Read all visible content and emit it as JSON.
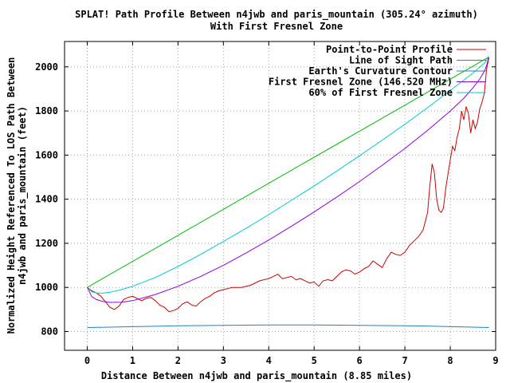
{
  "chart_data": {
    "type": "line",
    "title": "SPLAT! Path Profile Between n4jwb and paris_mountain (305.24° azimuth)",
    "subtitle": "With First Fresnel Zone",
    "xlabel": "Distance Between n4jwb and paris_mountain (8.85 miles)",
    "ylabel": "Normalized Height Referenced To LOS Path Between",
    "ylabel2": "n4jwb and paris_mountain (feet)",
    "xlim": [
      -0.5,
      9
    ],
    "ylim": [
      715,
      2115
    ],
    "xticks": [
      0,
      1,
      2,
      3,
      4,
      5,
      6,
      7,
      8,
      9
    ],
    "yticks": [
      800,
      1000,
      1200,
      1400,
      1600,
      1800,
      2000
    ],
    "grid": true,
    "legend_position": "top-right",
    "series": [
      {
        "name": "Point-to-Point Profile",
        "color": "#cc0000",
        "x": [
          0,
          0.1,
          0.2,
          0.3,
          0.4,
          0.5,
          0.6,
          0.7,
          0.8,
          0.9,
          1.0,
          1.1,
          1.2,
          1.3,
          1.4,
          1.5,
          1.6,
          1.7,
          1.8,
          1.9,
          2.0,
          2.1,
          2.2,
          2.3,
          2.4,
          2.5,
          2.6,
          2.7,
          2.8,
          2.9,
          3.0,
          3.2,
          3.4,
          3.6,
          3.8,
          4.0,
          4.1,
          4.2,
          4.3,
          4.4,
          4.5,
          4.6,
          4.7,
          4.8,
          4.9,
          5.0,
          5.1,
          5.2,
          5.3,
          5.4,
          5.5,
          5.6,
          5.7,
          5.8,
          5.9,
          6.0,
          6.1,
          6.2,
          6.3,
          6.4,
          6.5,
          6.6,
          6.7,
          6.8,
          6.9,
          7.0,
          7.1,
          7.2,
          7.3,
          7.4,
          7.5,
          7.55,
          7.6,
          7.65,
          7.7,
          7.75,
          7.8,
          7.85,
          7.9,
          8.0,
          8.05,
          8.1,
          8.15,
          8.2,
          8.25,
          8.3,
          8.35,
          8.4,
          8.45,
          8.5,
          8.55,
          8.6,
          8.65,
          8.7,
          8.75,
          8.8,
          8.85
        ],
        "values": [
          1000,
          985,
          975,
          960,
          935,
          910,
          900,
          915,
          945,
          955,
          960,
          950,
          940,
          950,
          955,
          940,
          920,
          910,
          890,
          895,
          905,
          925,
          935,
          920,
          915,
          935,
          950,
          960,
          975,
          985,
          990,
          1000,
          1000,
          1010,
          1030,
          1040,
          1050,
          1060,
          1040,
          1045,
          1050,
          1035,
          1040,
          1030,
          1020,
          1025,
          1005,
          1030,
          1035,
          1030,
          1050,
          1070,
          1080,
          1075,
          1060,
          1070,
          1085,
          1095,
          1120,
          1105,
          1090,
          1130,
          1160,
          1150,
          1145,
          1160,
          1190,
          1210,
          1230,
          1260,
          1340,
          1460,
          1560,
          1520,
          1400,
          1350,
          1340,
          1360,
          1450,
          1580,
          1640,
          1620,
          1680,
          1720,
          1800,
          1760,
          1820,
          1790,
          1700,
          1760,
          1720,
          1750,
          1810,
          1840,
          1880,
          1990,
          2040
        ]
      },
      {
        "name": "Line of Sight Path",
        "color": "#00bb00",
        "x": [
          0,
          8.85
        ],
        "values": [
          1000,
          2045
        ]
      },
      {
        "name": "Earth's Curvature Contour",
        "color": "#2080c0",
        "x": [
          0,
          0.5,
          1,
          1.5,
          2,
          3,
          4,
          4.5,
          5,
          6,
          7,
          7.5,
          8,
          8.5,
          8.85
        ],
        "values": [
          818,
          820,
          822,
          824,
          826,
          828,
          830,
          830,
          830,
          828,
          826,
          825,
          822,
          820,
          818
        ]
      },
      {
        "name": "First Fresnel Zone (146.520 MHz)",
        "color": "#9000e0",
        "x": [
          0,
          0.1,
          0.2,
          0.35,
          0.5,
          0.75,
          1,
          1.5,
          2,
          2.5,
          3,
          3.5,
          4,
          4.5,
          5,
          5.5,
          6,
          6.5,
          7,
          7.5,
          8,
          8.3,
          8.5,
          8.65,
          8.75,
          8.8,
          8.85
        ],
        "values": [
          1000,
          958,
          945,
          936,
          932,
          933,
          940,
          968,
          1005,
          1050,
          1100,
          1156,
          1215,
          1277,
          1342,
          1410,
          1480,
          1554,
          1630,
          1712,
          1800,
          1858,
          1905,
          1945,
          1980,
          2005,
          2045
        ]
      },
      {
        "name": "60% of First Fresnel Zone",
        "color": "#00cccc",
        "x": [
          0,
          0.1,
          0.2,
          0.35,
          0.5,
          0.75,
          1,
          1.5,
          2,
          2.5,
          3,
          3.5,
          4,
          4.5,
          5,
          5.5,
          6,
          6.5,
          7,
          7.5,
          8,
          8.3,
          8.5,
          8.65,
          8.75,
          8.8,
          8.85
        ],
        "values": [
          1000,
          980,
          975,
          974,
          978,
          990,
          1005,
          1045,
          1095,
          1150,
          1208,
          1268,
          1330,
          1395,
          1460,
          1528,
          1597,
          1668,
          1740,
          1815,
          1893,
          1940,
          1972,
          1998,
          2017,
          2030,
          2045
        ]
      }
    ]
  }
}
